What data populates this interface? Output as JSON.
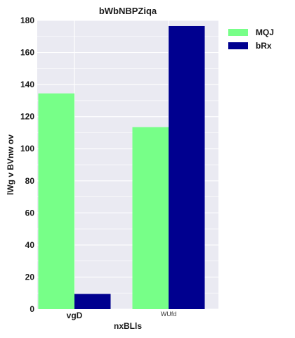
{
  "chart_data": {
    "type": "bar",
    "title": "bWbNBPZiqa",
    "xlabel": "nxBLls",
    "ylabel": "lWg v BVnw ov",
    "categories": [
      "vgD",
      "WUfd"
    ],
    "series": [
      {
        "name": "MQJ",
        "values": [
          134.5,
          113.5
        ],
        "color": "#77ff88"
      },
      {
        "name": "bRx",
        "values": [
          9.5,
          176.5
        ],
        "color": "#00008f"
      }
    ],
    "ylim": [
      0,
      180
    ],
    "yticks": [
      0,
      20,
      40,
      60,
      80,
      100,
      120,
      140,
      160,
      180
    ],
    "grid": true,
    "legend_position": "outside-top-right",
    "background": "#eaeaf2"
  }
}
